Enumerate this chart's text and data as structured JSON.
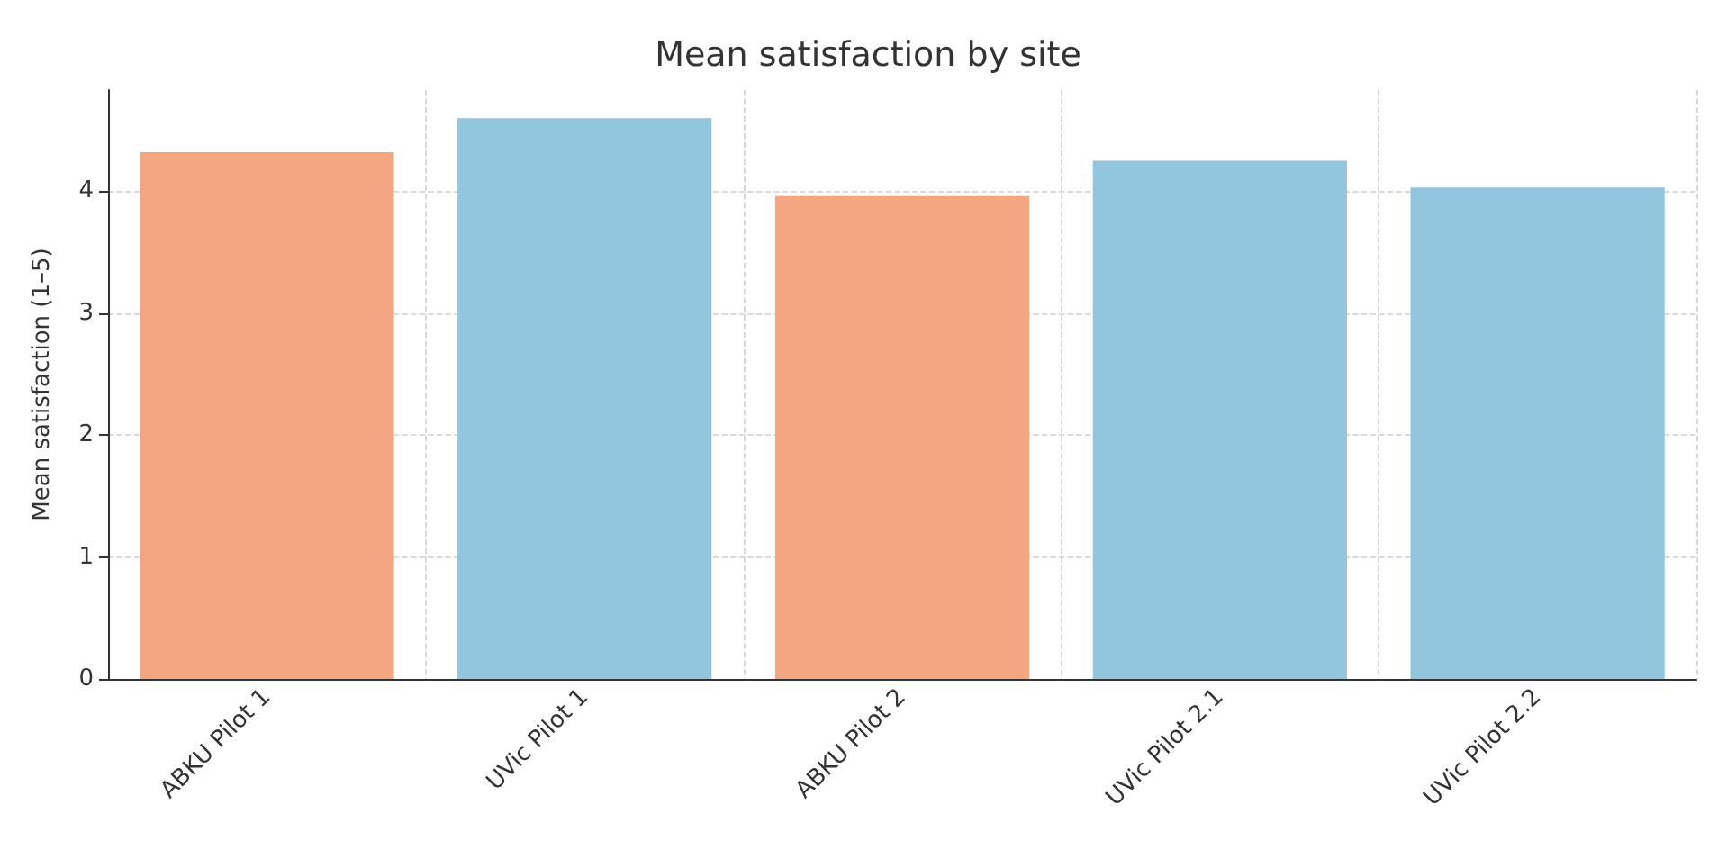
{
  "chart_data": {
    "type": "bar",
    "title": "Mean satisfaction by site",
    "ylabel": "Mean satisfaction (1–5)",
    "categories": [
      "ABKU Pilot 1",
      "UVic Pilot 1",
      "ABKU Pilot 2",
      "UVic Pilot 2.1",
      "UVic Pilot 2.2"
    ],
    "values": [
      4.32,
      4.6,
      3.96,
      4.25,
      4.03
    ],
    "colors": [
      "#f4a582",
      "#92c5de",
      "#f4a582",
      "#92c5de",
      "#92c5de"
    ],
    "ylim": [
      0,
      4.83
    ],
    "yticks": [
      0,
      1,
      2,
      3,
      4
    ],
    "grid": true
  }
}
